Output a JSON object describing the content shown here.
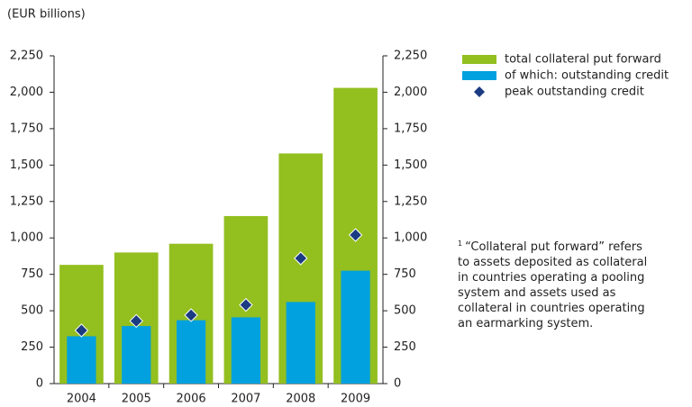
{
  "chart_data": {
    "type": "bar",
    "subtitle": "(EUR billions)",
    "categories": [
      "2004",
      "2005",
      "2006",
      "2007",
      "2008",
      "2009"
    ],
    "series": [
      {
        "name": "total collateral put forward",
        "color": "#93bf1f",
        "values": [
          815,
          900,
          960,
          1150,
          1580,
          2030
        ]
      },
      {
        "name": "of which: outstanding credit",
        "color": "#00a1de",
        "values": [
          325,
          395,
          435,
          455,
          560,
          775
        ]
      },
      {
        "name": "peak outstanding credit",
        "color": "#1b3b82",
        "values": [
          365,
          430,
          470,
          540,
          860,
          1020
        ]
      }
    ],
    "ylim": [
      0,
      2250
    ],
    "yticks": [
      0,
      {
        "value": 250,
        "label": "250"
      },
      500,
      750,
      {
        "value": 1000,
        "label": "1,000"
      },
      {
        "value": 1250,
        "label": "1,250"
      },
      {
        "value": 1500,
        "label": "1,500"
      },
      {
        "value": 1750,
        "label": "1,750"
      },
      {
        "value": 2000,
        "label": "2,000"
      },
      {
        "value": 2250,
        "label": "2,250"
      }
    ],
    "y2lim": [
      0,
      2250
    ],
    "y2ticks": [
      0,
      {
        "value": 250,
        "label": "250"
      },
      500,
      750,
      {
        "value": 1000,
        "label": "1,000"
      },
      {
        "value": 1250,
        "label": "1,250"
      },
      {
        "value": 1500,
        "label": "1,500"
      },
      {
        "value": 1750,
        "label": "1,750"
      },
      {
        "value": 2000,
        "label": "2,000"
      },
      {
        "value": 2250,
        "label": "2,250"
      }
    ],
    "legend": "top-right",
    "footnote": {
      "marker": "1",
      "text": "“Collateral put forward” refers to assets deposited as collateral in countries operating a pooling system and assets used as collateral in countries operating an earmarking system."
    }
  }
}
